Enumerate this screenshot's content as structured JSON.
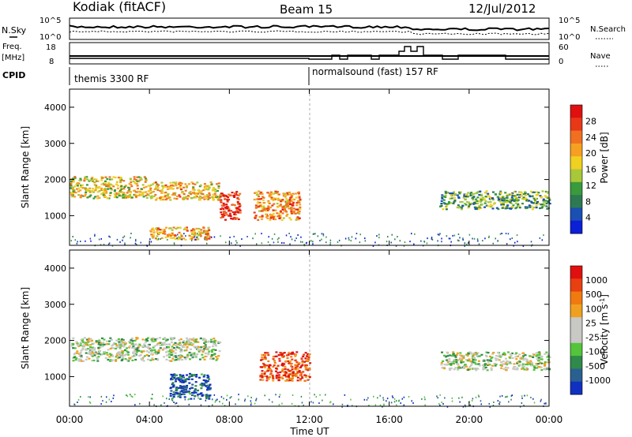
{
  "header": {
    "title": "Kodiak (fitACF)",
    "beam": "Beam 15",
    "date": "12/Jul/2012"
  },
  "top_panels": {
    "nsky_label": "N.Sky",
    "nsky_ticks": [
      "10^5",
      "10^0"
    ],
    "nsearch_label": "N.Search",
    "nsearch_ticks": [
      "10^5",
      "10^0"
    ],
    "freq_label": "Freq.",
    "freq_unit": "[MHz]",
    "freq_ticks": [
      "18",
      "8"
    ],
    "nave_label": "Nave",
    "nave_ticks": [
      "60",
      "0"
    ],
    "cpid_label": "CPID",
    "cpid_segments": [
      {
        "start": "00:00",
        "end": "12:00",
        "name": "themis 3300 RF"
      },
      {
        "start": "12:00",
        "end": "24:00",
        "name": "normalsound (fast) 157 RF"
      }
    ]
  },
  "chart_data": [
    {
      "type": "heatmap",
      "name": "Power",
      "ylabel": "Slant Range [km]",
      "xlabel": "Time UT",
      "xlim": [
        0,
        24
      ],
      "ylim": [
        180,
        4500
      ],
      "y_ticks": [
        1000,
        2000,
        3000,
        4000
      ],
      "x_ticks": [
        "00:00",
        "04:00",
        "08:00",
        "12:00",
        "16:00",
        "20:00",
        "00:00"
      ],
      "colorbar": {
        "label": "Power [dB]",
        "ticks": [
          "4",
          "8",
          "12",
          "16",
          "20",
          "24",
          "28"
        ],
        "colors": [
          "#0a1fd6",
          "#1a4fb3",
          "#2d7a52",
          "#3a9a3c",
          "#a8c83a",
          "#f0d020",
          "#f5a020",
          "#f07020",
          "#e83818",
          "#e01010"
        ]
      },
      "scatter_bands": [
        {
          "t0": 0.0,
          "t1": 4.0,
          "r0": 1500,
          "r1": 2100,
          "level": 0.55
        },
        {
          "t0": 4.0,
          "t1": 7.5,
          "r0": 1450,
          "r1": 1950,
          "level": 0.6
        },
        {
          "t0": 7.5,
          "t1": 8.5,
          "r0": 900,
          "r1": 1700,
          "level": 0.92
        },
        {
          "t0": 9.2,
          "t1": 11.5,
          "r0": 900,
          "r1": 1700,
          "level": 0.7
        },
        {
          "t0": 4.0,
          "t1": 7.0,
          "r0": 350,
          "r1": 700,
          "level": 0.65
        },
        {
          "t0": 18.5,
          "t1": 24.0,
          "r0": 1200,
          "r1": 1700,
          "level": 0.35
        }
      ]
    },
    {
      "type": "heatmap",
      "name": "Velocity",
      "ylabel": "Slant Range [km]",
      "xlabel": "Time UT",
      "xlim": [
        0,
        24
      ],
      "ylim": [
        180,
        4500
      ],
      "y_ticks": [
        1000,
        2000,
        3000,
        4000
      ],
      "x_ticks": [
        "00:00",
        "04:00",
        "08:00",
        "12:00",
        "16:00",
        "20:00",
        "00:00"
      ],
      "colorbar": {
        "label": "Velocity [m s^-1]",
        "ticks": [
          "1000",
          "500",
          "100",
          "25",
          "-25",
          "-100",
          "-500",
          "-1000"
        ],
        "colors": [
          "#1030c0",
          "#2a6090",
          "#2f8a4c",
          "#54c43a",
          "#c8c8c4",
          "#c8c8c4",
          "#f0a020",
          "#f07a10",
          "#e84010",
          "#e01010"
        ]
      },
      "scatter_bands": [
        {
          "t0": 0.0,
          "t1": 7.5,
          "r0": 1450,
          "r1": 2100,
          "level": 0.45
        },
        {
          "t0": 9.5,
          "t1": 12.0,
          "r0": 900,
          "r1": 1700,
          "level": 0.85
        },
        {
          "t0": 5.0,
          "t1": 7.0,
          "r0": 400,
          "r1": 1100,
          "level": 0.1
        },
        {
          "t0": 18.5,
          "t1": 24.0,
          "r0": 1200,
          "r1": 1700,
          "level": 0.45
        }
      ]
    }
  ]
}
